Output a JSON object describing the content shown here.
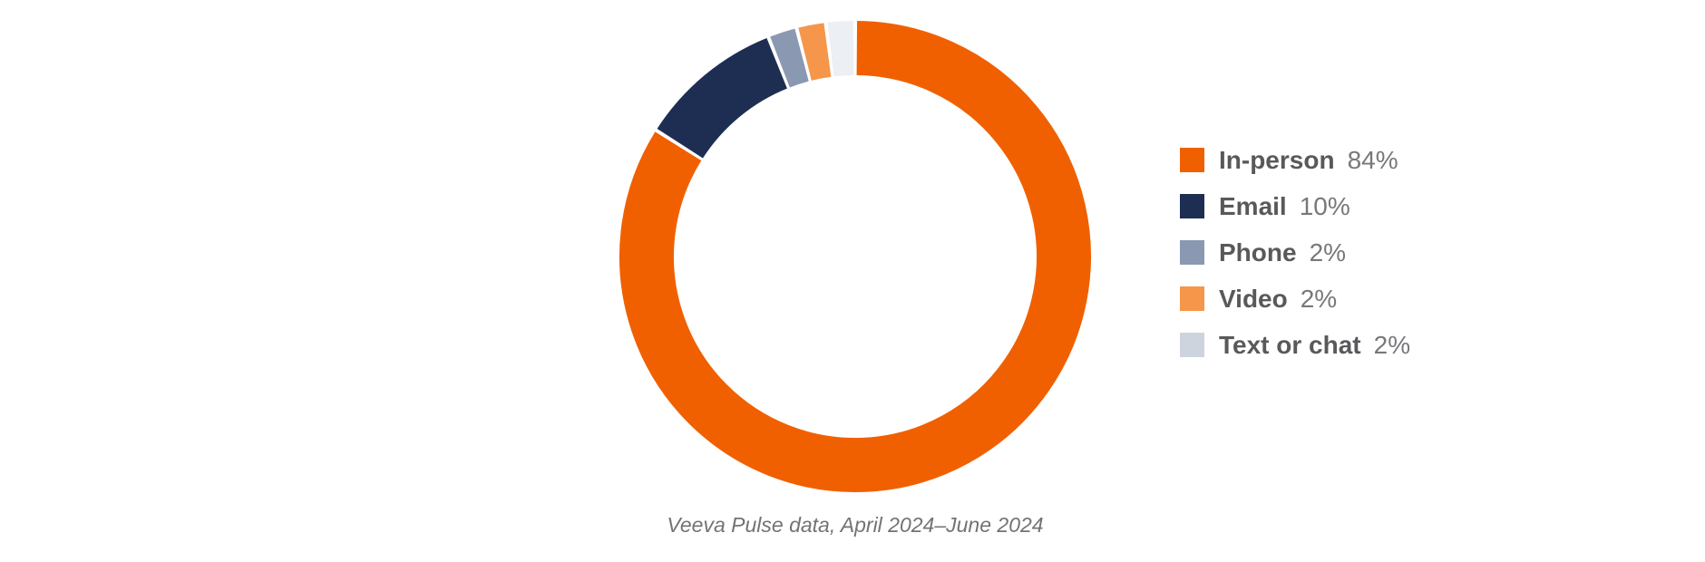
{
  "chart_data": {
    "type": "pie",
    "subtype": "donut",
    "categories": [
      "In-person",
      "Email",
      "Phone",
      "Video",
      "Text or chat"
    ],
    "values": [
      84,
      10,
      2,
      2,
      2
    ],
    "value_labels": [
      "84%",
      "10%",
      "2%",
      "2%",
      "2%"
    ],
    "unit": "%",
    "colors": [
      "#F06000",
      "#1D2E52",
      "#8A98B1",
      "#F6964A",
      "#ECEFF3"
    ],
    "legend_colors": [
      "#F06000",
      "#1D2E52",
      "#8A98B1",
      "#F6964A",
      "#CED4DD"
    ],
    "start_angle_deg": 0,
    "direction": "clockwise",
    "segment_gap_deg": 0.9,
    "legend_position": "right",
    "grid": false,
    "title": "",
    "caption": "Veeva Pulse data, April 2024–June 2024"
  }
}
